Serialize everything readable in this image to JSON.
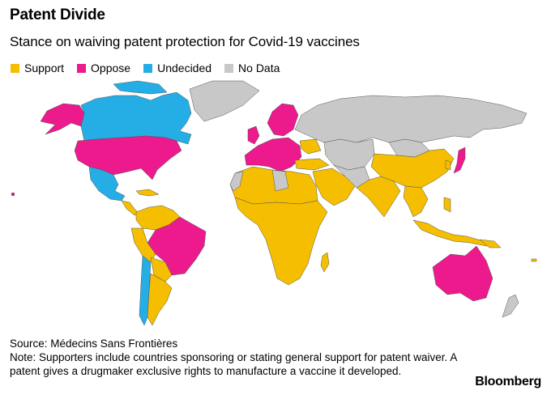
{
  "title": "Patent Divide",
  "subtitle": "Stance on waiving patent protection for Covid-19 vaccines",
  "legend": [
    {
      "label": "Support",
      "color": "#F5BE00"
    },
    {
      "label": "Oppose",
      "color": "#EC1A8C"
    },
    {
      "label": "Undecided",
      "color": "#25AEE6"
    },
    {
      "label": "No Data",
      "color": "#C8C8C8"
    }
  ],
  "colors": {
    "support": "#F5BE00",
    "oppose": "#EC1A8C",
    "undecided": "#25AEE6",
    "nodata": "#C8C8C8"
  },
  "source": "Source: Médecins Sans Frontières",
  "note": "Note: Supporters include countries sponsoring or stating general support for patent waiver. A patent gives a drugmaker exclusive rights to manufacture a vaccine it developed.",
  "brand": "Bloomberg"
}
